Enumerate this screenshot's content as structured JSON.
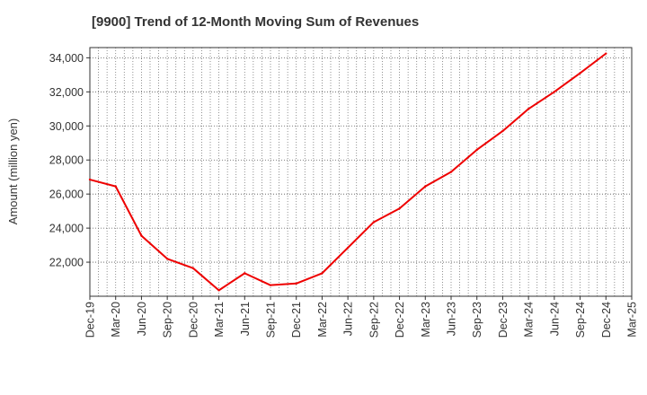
{
  "chart_data": {
    "type": "line",
    "title": "[9900]  Trend of 12-Month Moving Sum of Revenues",
    "xlabel": "",
    "ylabel": "Amount (million yen)",
    "categories": [
      "Dec-19",
      "Mar-20",
      "Jun-20",
      "Sep-20",
      "Dec-20",
      "Mar-21",
      "Jun-21",
      "Sep-21",
      "Dec-21",
      "Mar-22",
      "Jun-22",
      "Sep-22",
      "Dec-22",
      "Mar-23",
      "Jun-23",
      "Sep-23",
      "Dec-23",
      "Mar-24",
      "Jun-24",
      "Sep-24",
      "Dec-24",
      "Mar-25"
    ],
    "series": [
      {
        "color": "#ee0000",
        "values": [
          26850,
          26450,
          23550,
          22200,
          21650,
          20350,
          21350,
          20650,
          20750,
          21350,
          22850,
          24350,
          25150,
          26450,
          27300,
          28600,
          29700,
          31000,
          32000,
          33100,
          34250,
          null
        ]
      }
    ],
    "yticks": [
      22000,
      24000,
      26000,
      28000,
      30000,
      32000,
      34000
    ],
    "ytick_labels": [
      "22,000",
      "24,000",
      "26,000",
      "28,000",
      "30,000",
      "32,000",
      "34,000"
    ],
    "ylim": [
      20000,
      34600
    ],
    "grid": true
  }
}
